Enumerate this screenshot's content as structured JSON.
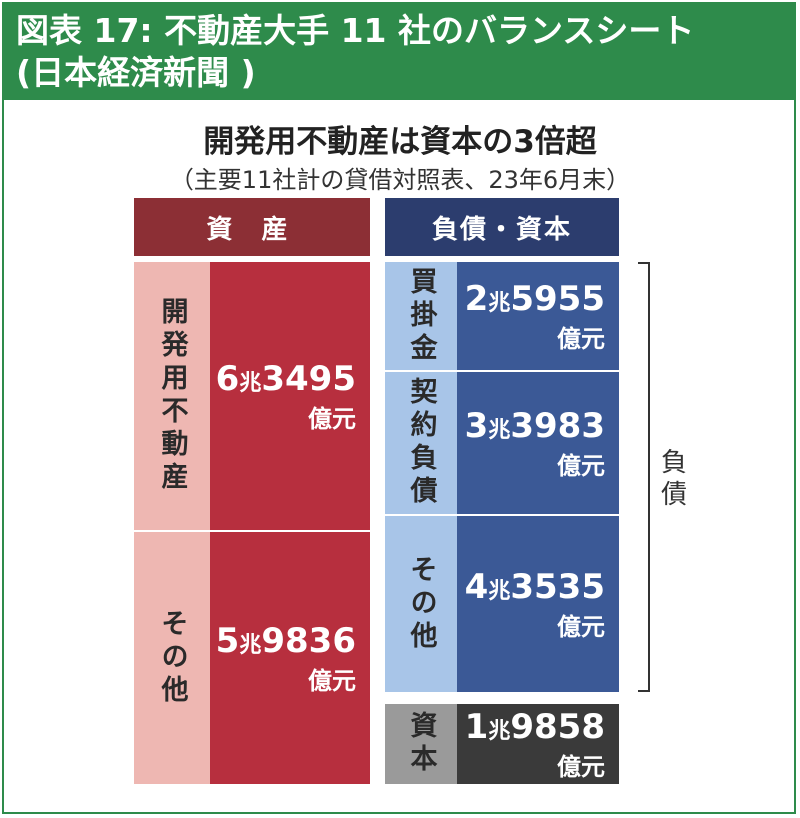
{
  "header": {
    "line1": "図表 17: 不動産大手 11 社のバランスシート",
    "line2": "(日本経済新聞 )"
  },
  "chart_data": {
    "type": "table",
    "title": "開発用不動産は資本の3倍超",
    "subtitle": "（主要11社計の貸借対照表、23年6月末）",
    "assets_header": "資 産",
    "liabilities_header": "負債・資本",
    "liabilities_bracket_label": "負債",
    "assets": [
      {
        "label": "開発用不動産",
        "value_oku": 63495,
        "cho": "6",
        "rest": "3495",
        "cho_unit": "兆",
        "unit": "億元"
      },
      {
        "label": "その他",
        "value_oku": 59836,
        "cho": "5",
        "rest": "9836",
        "cho_unit": "兆",
        "unit": "億元"
      }
    ],
    "liabilities": [
      {
        "label": "買掛金",
        "value_oku": 25955,
        "cho": "2",
        "rest": "5955",
        "cho_unit": "兆",
        "unit": "億元"
      },
      {
        "label": "契約負債",
        "value_oku": 33983,
        "cho": "3",
        "rest": "3983",
        "cho_unit": "兆",
        "unit": "億元"
      },
      {
        "label": "その他",
        "value_oku": 43535,
        "cho": "4",
        "rest": "3535",
        "cho_unit": "兆",
        "unit": "億元"
      }
    ],
    "equity": {
      "label": "資本",
      "value_oku": 19858,
      "cho": "1",
      "rest": "9858",
      "cho_unit": "兆",
      "unit": "億元"
    }
  }
}
